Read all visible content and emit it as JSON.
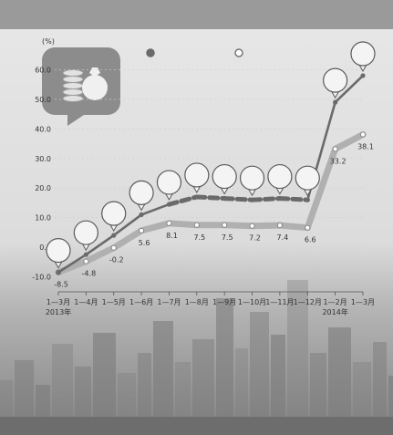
{
  "header": {
    "title": ""
  },
  "footer": {
    "source": ""
  },
  "icons": {
    "badge": "coin-stack-money-bag-icon"
  },
  "colors": {
    "series1": "#6a6a6a",
    "series2": "#b0b0b0",
    "bubble_fill": "#f4f4f4",
    "bubble_stroke": "#5a5a5a",
    "grid": "#cfcfcf",
    "cityscape": "#7a7a7a"
  },
  "chart_data": {
    "type": "line",
    "title": "",
    "xlabel": "",
    "ylabel": "",
    "y_unit": "(%)",
    "ylim": [
      -12,
      62
    ],
    "y_ticks": [
      -10,
      0,
      10,
      20,
      30,
      40,
      50,
      60
    ],
    "grid": false,
    "legend_placement": "top",
    "categories": [
      "1—3月",
      "1—4月",
      "1—5月",
      "1—6月",
      "1—7月",
      "1—8月",
      "1—9月",
      "1—10月",
      "1—11月",
      "1—12月",
      "1—2月",
      "1—3月"
    ],
    "category_year_labels": [
      {
        "index": 0,
        "label": "2013年"
      },
      {
        "index": 10,
        "label": "2014年"
      }
    ],
    "series": [
      {
        "values": [
          -8.5,
          -2.5,
          4.0,
          11.0,
          14.5,
          17.0,
          16.5,
          16.0,
          16.5,
          16.0,
          49.0,
          58.0
        ],
        "point_labels": [
          "",
          "",
          "",
          "",
          "",
          "",
          "",
          "",
          "",
          "",
          "",
          ""
        ]
      },
      {
        "values": [
          -8.5,
          -4.8,
          -0.2,
          5.6,
          8.1,
          7.5,
          7.5,
          7.2,
          7.4,
          6.6,
          33.2,
          38.1
        ],
        "point_labels": [
          "-8.5",
          "-4.8",
          "-0.2",
          "5.6",
          "8.1",
          "7.5",
          "7.5",
          "7.2",
          "7.4",
          "6.6",
          "33.2",
          "38.1"
        ]
      }
    ]
  }
}
